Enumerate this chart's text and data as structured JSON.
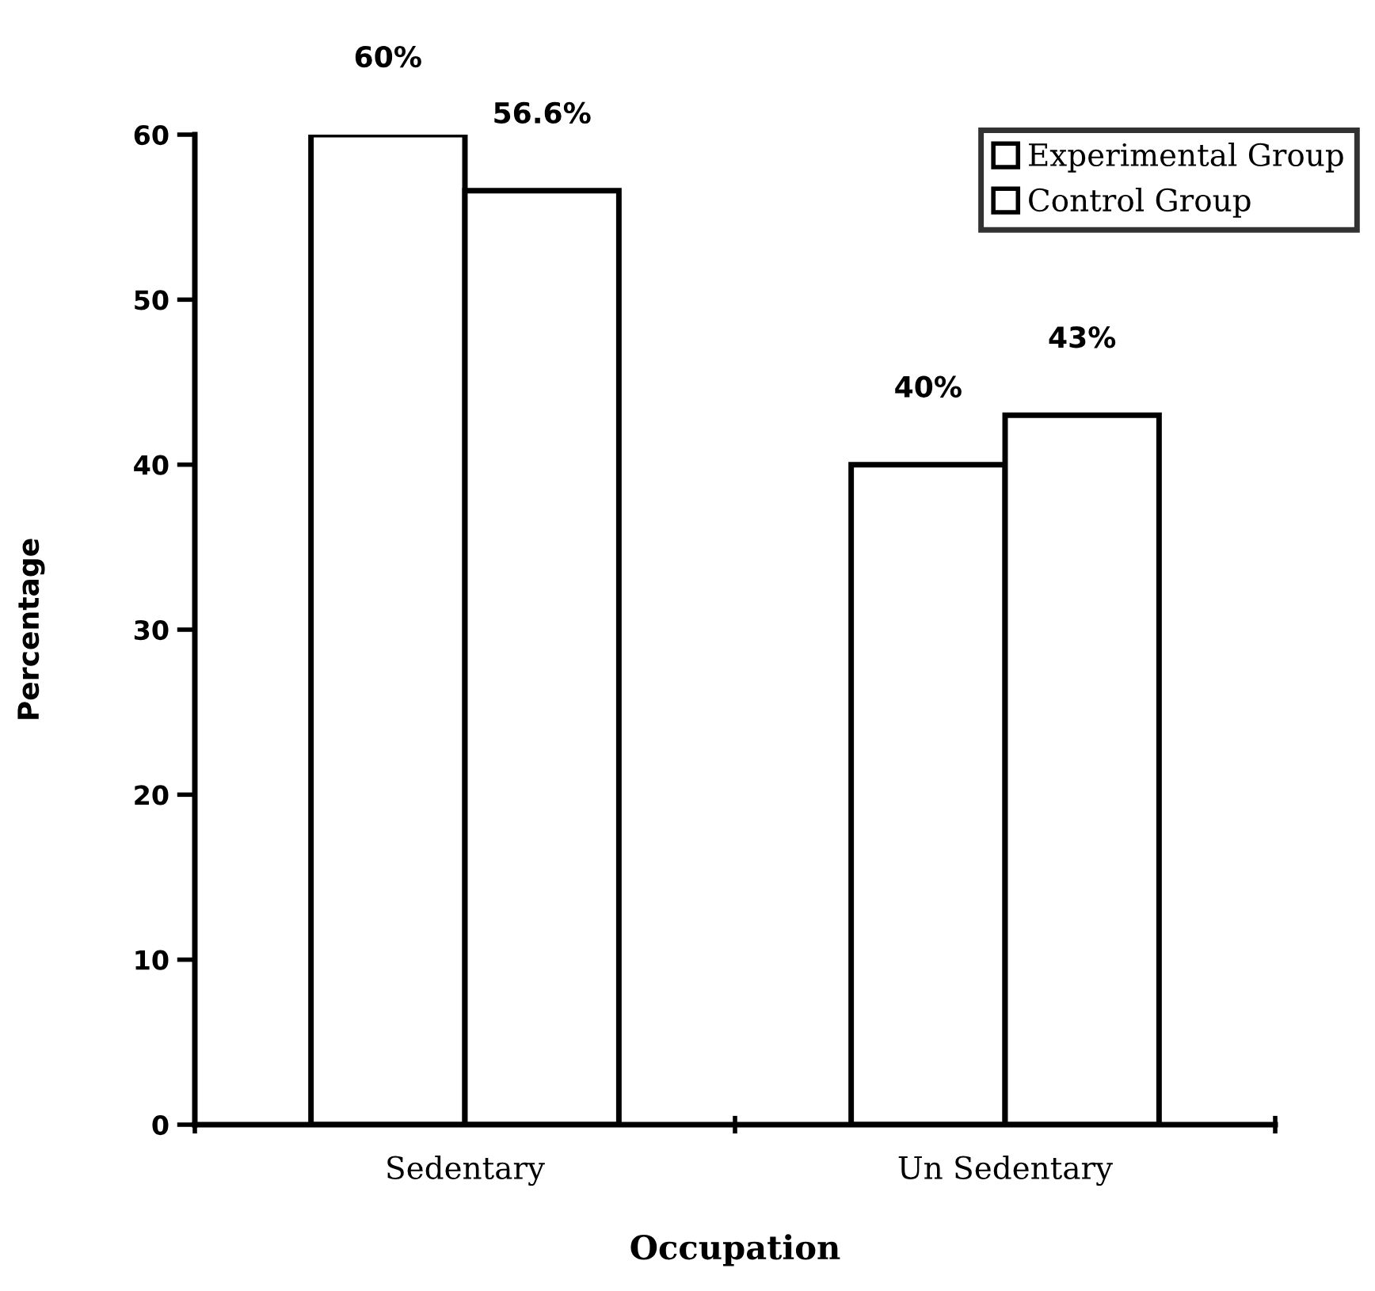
{
  "chart_data": {
    "type": "bar",
    "xlabel": "Occupation",
    "ylabel": "Percentage",
    "categories": [
      "Sedentary",
      "Un Sedentary"
    ],
    "series": [
      {
        "name": "Experimental Group",
        "color": "#ffffff",
        "values": [
          60,
          40
        ],
        "value_labels": [
          "60%",
          "40%"
        ]
      },
      {
        "name": "Control Group",
        "color": "#ffffff",
        "values": [
          56.6,
          43
        ],
        "value_labels": [
          "56.6%",
          "43%"
        ]
      }
    ],
    "ylim": [
      0,
      60
    ],
    "yticks": [
      0,
      10,
      20,
      30,
      40,
      50,
      60
    ],
    "grid": false,
    "legend": "top right"
  }
}
